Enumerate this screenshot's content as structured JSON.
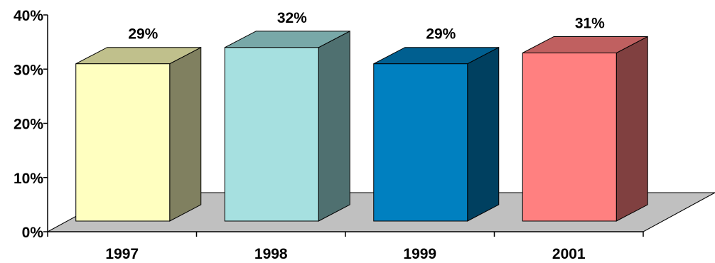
{
  "chart_data": {
    "type": "bar",
    "style": "3d-column",
    "categories": [
      "1997",
      "1998",
      "1999",
      "2001"
    ],
    "values": [
      29,
      32,
      29,
      31
    ],
    "data_labels": [
      "29%",
      "32%",
      "29%",
      "31%"
    ],
    "ylim": [
      0,
      40
    ],
    "y_ticks": [
      0,
      10,
      20,
      30,
      40
    ],
    "y_tick_labels": [
      "0%",
      "10%",
      "20%",
      "30%",
      "40%"
    ],
    "grid": false,
    "legend": "none",
    "floor_color": "#c0c0c0",
    "bar_colors": [
      {
        "front": "#ffffc0",
        "top": "#c0c08c",
        "side": "#808060"
      },
      {
        "front": "#a6e0e0",
        "top": "#78a8a8",
        "side": "#4f7070"
      },
      {
        "front": "#0080c0",
        "top": "#005f90",
        "side": "#004060"
      },
      {
        "front": "#ff8080",
        "top": "#c06060",
        "side": "#804040"
      }
    ]
  }
}
